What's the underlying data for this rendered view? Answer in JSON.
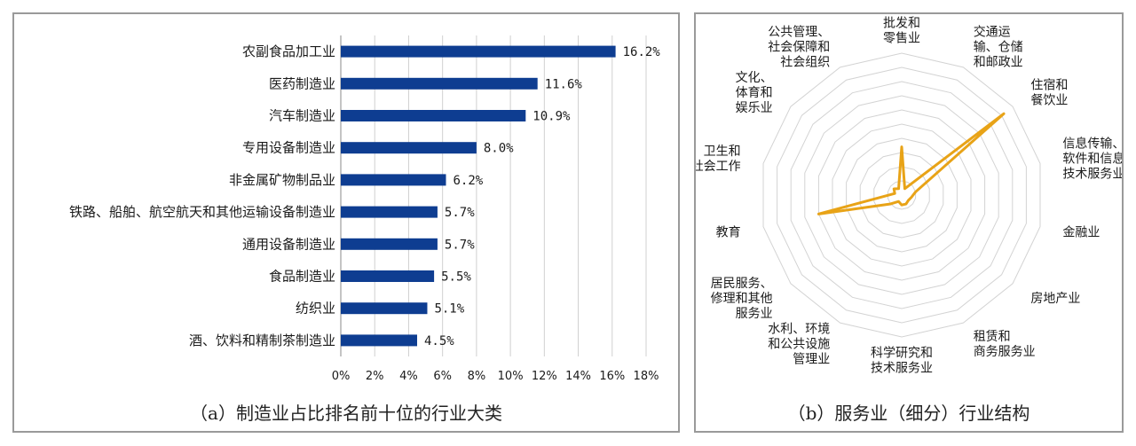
{
  "panels": {
    "a": {
      "caption": "（a）制造业占比排名前十位的行业大类"
    },
    "b": {
      "caption": "（b）服务业（细分）行业结构"
    }
  },
  "chart_data": [
    {
      "type": "bar",
      "orientation": "horizontal",
      "categories": [
        "农副食品加工业",
        "医药制造业",
        "汽车制造业",
        "专用设备制造业",
        "非金属矿物制品业",
        "铁路、船舶、航空航天和其他运输设备制造业",
        "通用设备制造业",
        "食品制造业",
        "纺织业",
        "酒、饮料和精制茶制造业"
      ],
      "values": [
        16.2,
        11.6,
        10.9,
        8.0,
        6.2,
        5.7,
        5.7,
        5.5,
        5.1,
        4.5
      ],
      "value_labels": [
        "16.2%",
        "11.6%",
        "10.9%",
        "8.0%",
        "6.2%",
        "5.7%",
        "5.7%",
        "5.5%",
        "5.1%",
        "4.5%"
      ],
      "xticks": [
        "0%",
        "2%",
        "4%",
        "6%",
        "8%",
        "10%",
        "12%",
        "14%",
        "16%",
        "18%"
      ],
      "xlim": [
        0,
        18
      ],
      "grid": true,
      "bar_color": "#0e3d91",
      "title": "（a）制造业占比排名前十位的行业大类"
    },
    {
      "type": "radar",
      "categories": [
        "批发和\n零售业",
        "交通运\n输、仓储\n和邮政业",
        "住宿和\n餐饮业",
        "信息传输、\n软件和信息\n技术服务业",
        "金融业",
        "房地产业",
        "租赁和\n商务服务业",
        "科学研究和\n技术服务业",
        "水利、环境\n和公共设施\n管理业",
        "居民服务、\n修理和其他\n服务业",
        "教育",
        "卫生和\n社会工作",
        "文化、\n体育和\n娱乐业",
        "公共管理、\n社会保障和\n社会组织"
      ],
      "values": [
        0.34,
        0.05,
        0.92,
        0.1,
        0.07,
        0.06,
        0.07,
        0.07,
        0.05,
        0.1,
        0.6,
        0.05,
        0.07,
        0.05
      ],
      "rings": 10,
      "line_color": "#e8a317",
      "title": "（b）服务业（细分）行业结构"
    }
  ]
}
